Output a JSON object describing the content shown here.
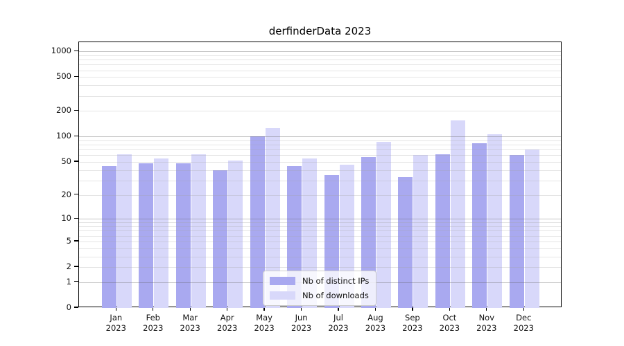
{
  "title": "derfinderData 2023",
  "chart_data": {
    "type": "bar",
    "title": "derfinderData 2023",
    "scale": "log10(value+1)",
    "grid": true,
    "legend_position": "bottom-center",
    "categories": [
      "Jan 2023",
      "Feb 2023",
      "Mar 2023",
      "Apr 2023",
      "May 2023",
      "Jun 2023",
      "Jul 2023",
      "Aug 2023",
      "Sep 2023",
      "Oct 2023",
      "Nov 2023",
      "Dec 2023"
    ],
    "series": [
      {
        "name": "Nb of distinct IPs",
        "color": "#a9a9f0",
        "values": [
          45,
          48,
          48,
          40,
          101,
          45,
          35,
          57,
          33,
          62,
          83,
          60
        ]
      },
      {
        "name": "Nb of downloads",
        "color": "#d8d8fa",
        "values": [
          62,
          55,
          62,
          52,
          126,
          55,
          46,
          87,
          61,
          155,
          106,
          71
        ]
      }
    ],
    "y_ticks": [
      0,
      1,
      2,
      5,
      10,
      20,
      50,
      100,
      200,
      500,
      1000
    ],
    "ylim": [
      0,
      1280
    ],
    "xlabel": "",
    "ylabel": ""
  }
}
